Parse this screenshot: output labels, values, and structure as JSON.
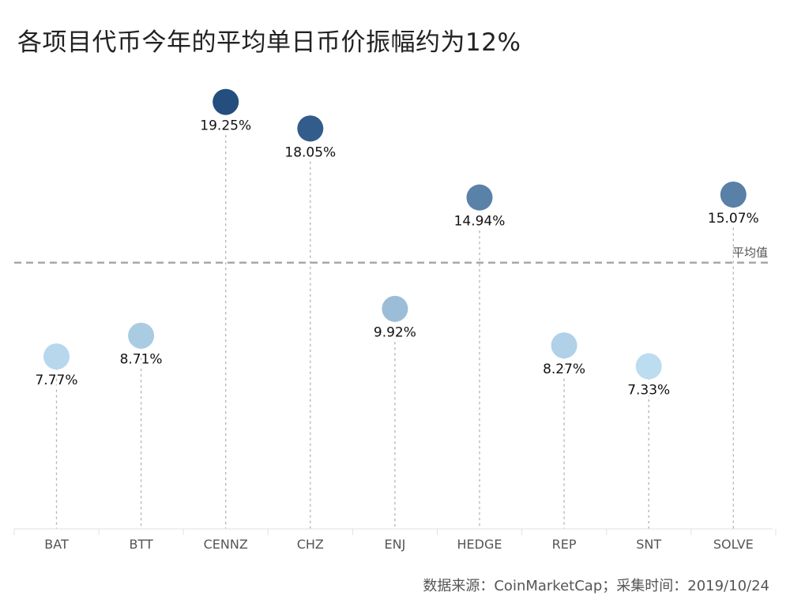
{
  "chart_data": {
    "type": "scatter",
    "title": "各项目代币今年的平均单日币价振幅约为12%",
    "categories": [
      "BAT",
      "BTT",
      "CENNZ",
      "CHZ",
      "ENJ",
      "HEDGE",
      "REP",
      "SNT",
      "SOLVE"
    ],
    "values": [
      7.77,
      8.71,
      19.25,
      18.05,
      9.92,
      14.94,
      8.27,
      7.33,
      15.07
    ],
    "value_labels": [
      "7.77%",
      "8.71%",
      "19.25%",
      "18.05%",
      "9.92%",
      "14.94%",
      "8.27%",
      "7.33%",
      "15.07%"
    ],
    "average": 12,
    "average_label": "平均值",
    "ylim": [
      0,
      21
    ],
    "xlabel": "",
    "ylabel": "",
    "colors": {
      "low": "#bcdcf0",
      "high": "#234e7e",
      "stem": "#b0b0b8",
      "average_line": "#a8a8a8"
    }
  },
  "source": "数据来源：CoinMarketCap；采集时间：2019/10/24"
}
